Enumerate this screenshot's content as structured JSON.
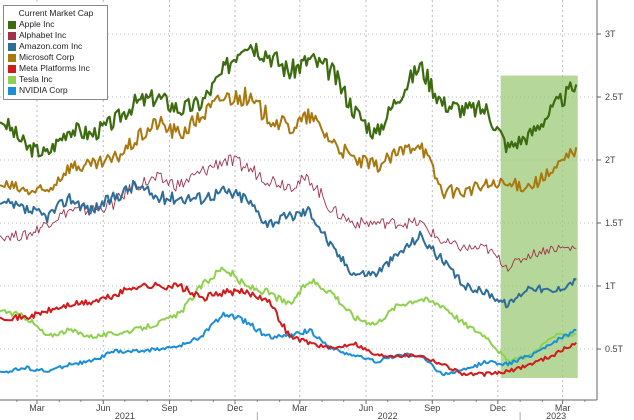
{
  "chart_data": {
    "type": "line",
    "legend_title": "Current Market Cap",
    "legend_placement": "top-left",
    "y_axis_side": "right",
    "ylim": [
      0,
      3.1
    ],
    "y_ticks": [
      {
        "v": 0.5,
        "label": "0.5T"
      },
      {
        "v": 1,
        "label": "1T"
      },
      {
        "v": 1.5,
        "label": "1.5T"
      },
      {
        "v": 2,
        "label": "2T"
      },
      {
        "v": 2.5,
        "label": "2.5T"
      },
      {
        "v": 3,
        "label": "3T"
      }
    ],
    "x_range": [
      "2021-01-05",
      "2023-03-26"
    ],
    "x_ticks": [
      {
        "date": "2021-03-01",
        "label": "Mar"
      },
      {
        "date": "2021-06-01",
        "label": "Jun"
      },
      {
        "date": "2021-09-01",
        "label": "Sep"
      },
      {
        "date": "2021-12-01",
        "label": "Dec"
      },
      {
        "date": "2022-03-01",
        "label": "Mar"
      },
      {
        "date": "2022-06-01",
        "label": "Jun"
      },
      {
        "date": "2022-09-01",
        "label": "Sep"
      },
      {
        "date": "2022-12-01",
        "label": "Dec"
      },
      {
        "date": "2023-03-01",
        "label": "Mar"
      }
    ],
    "year_labels": [
      {
        "date": "2021-07-01",
        "label": "2021"
      },
      {
        "date": "2022-07-01",
        "label": "2022"
      },
      {
        "date": "2023-02-20",
        "label": "2023"
      }
    ],
    "grid": true,
    "highlight": {
      "x_start": "2022-12-05",
      "x_end": "2023-03-22",
      "y_start": 0.27,
      "y_end": 2.67,
      "color": "#9ccb78"
    },
    "x": [
      "2021-01-15",
      "2021-02-15",
      "2021-03-15",
      "2021-04-15",
      "2021-05-15",
      "2021-06-15",
      "2021-07-15",
      "2021-08-15",
      "2021-09-15",
      "2021-10-15",
      "2021-11-15",
      "2021-12-15",
      "2022-01-15",
      "2022-02-15",
      "2022-03-15",
      "2022-04-15",
      "2022-05-15",
      "2022-06-15",
      "2022-07-15",
      "2022-08-15",
      "2022-09-15",
      "2022-10-15",
      "2022-11-15",
      "2022-12-15",
      "2023-01-15",
      "2023-02-15",
      "2023-03-20"
    ],
    "series": [
      {
        "name": "Apple Inc",
        "color": "#3d6b10",
        "width": 2.2,
        "values": [
          2.3,
          2.1,
          2.05,
          2.25,
          2.2,
          2.3,
          2.45,
          2.5,
          2.4,
          2.45,
          2.7,
          2.95,
          2.85,
          2.7,
          2.8,
          2.7,
          2.4,
          2.2,
          2.5,
          2.75,
          2.45,
          2.4,
          2.4,
          2.1,
          2.2,
          2.4,
          2.6
        ]
      },
      {
        "name": "Alphabet Inc",
        "color": "#a0324a",
        "width": 0.9,
        "values": [
          1.4,
          1.4,
          1.5,
          1.6,
          1.6,
          1.65,
          1.8,
          1.85,
          1.8,
          1.9,
          2.0,
          1.95,
          1.85,
          1.8,
          1.85,
          1.6,
          1.5,
          1.5,
          1.5,
          1.5,
          1.35,
          1.3,
          1.3,
          1.15,
          1.25,
          1.3,
          1.3
        ]
      },
      {
        "name": "Amazon.com Inc",
        "color": "#2f6d99",
        "width": 2,
        "values": [
          1.65,
          1.6,
          1.55,
          1.7,
          1.6,
          1.7,
          1.8,
          1.7,
          1.7,
          1.7,
          1.75,
          1.7,
          1.5,
          1.55,
          1.6,
          1.3,
          1.1,
          1.1,
          1.25,
          1.4,
          1.2,
          1.0,
          0.95,
          0.85,
          1.0,
          0.95,
          1.05
        ]
      },
      {
        "name": "Microsoft Corp",
        "color": "#a8780f",
        "width": 2,
        "values": [
          1.8,
          1.75,
          1.75,
          1.95,
          1.95,
          2.0,
          2.15,
          2.3,
          2.2,
          2.35,
          2.5,
          2.5,
          2.35,
          2.25,
          2.35,
          2.15,
          2.0,
          1.95,
          2.05,
          2.15,
          1.75,
          1.75,
          1.8,
          1.8,
          1.8,
          1.9,
          2.1
        ]
      },
      {
        "name": "Meta Platforms Inc",
        "color": "#d11a1a",
        "width": 2,
        "values": [
          0.75,
          0.75,
          0.8,
          0.85,
          0.87,
          0.92,
          1.0,
          1.0,
          1.0,
          0.9,
          0.95,
          0.95,
          0.9,
          0.6,
          0.55,
          0.5,
          0.55,
          0.45,
          0.45,
          0.45,
          0.38,
          0.3,
          0.3,
          0.32,
          0.38,
          0.45,
          0.55
        ]
      },
      {
        "name": "Tesla Inc",
        "color": "#8fd14f",
        "width": 2,
        "values": [
          0.8,
          0.75,
          0.6,
          0.65,
          0.6,
          0.62,
          0.65,
          0.7,
          0.78,
          1.0,
          1.15,
          1.0,
          0.95,
          0.85,
          1.05,
          0.95,
          0.75,
          0.7,
          0.85,
          0.9,
          0.85,
          0.7,
          0.6,
          0.4,
          0.45,
          0.6,
          0.62
        ]
      },
      {
        "name": "NVIDIA Corp",
        "color": "#1a8fd8",
        "width": 2,
        "values": [
          0.32,
          0.35,
          0.32,
          0.38,
          0.4,
          0.48,
          0.48,
          0.5,
          0.52,
          0.6,
          0.78,
          0.72,
          0.6,
          0.6,
          0.65,
          0.5,
          0.45,
          0.4,
          0.45,
          0.45,
          0.3,
          0.33,
          0.4,
          0.38,
          0.45,
          0.55,
          0.65
        ]
      }
    ]
  }
}
